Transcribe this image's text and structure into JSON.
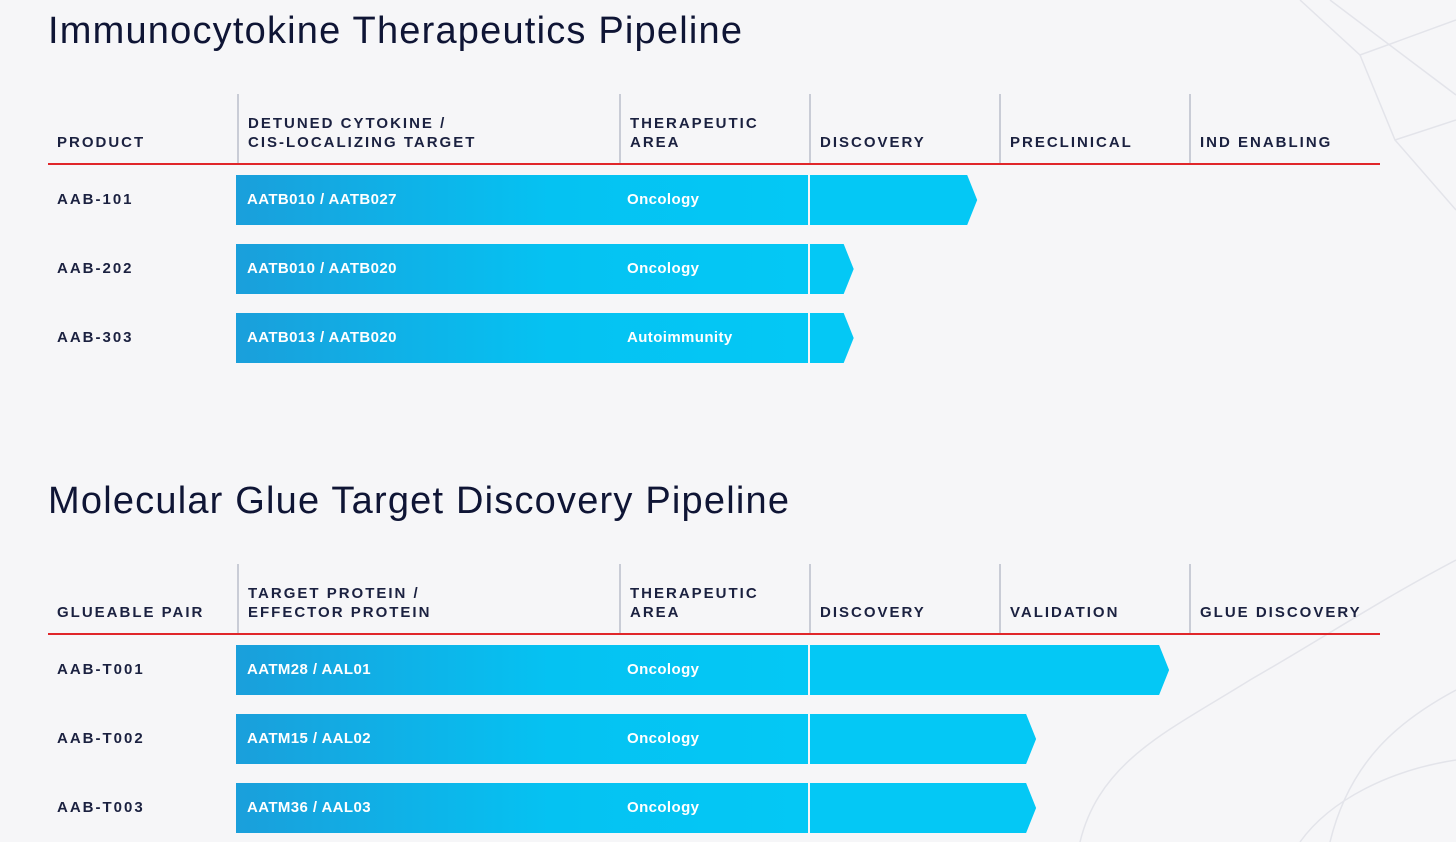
{
  "chart_data": [
    {
      "type": "bar",
      "title": "Immunocytokine Therapeutics Pipeline",
      "columns": [
        "PRODUCT",
        "DETUNED CYTOKINE /\nCIS-LOCALIZING TARGET",
        "THERAPEUTIC\nAREA",
        "DISCOVERY",
        "PRECLINICAL",
        "IND ENABLING"
      ],
      "stages": [
        "DISCOVERY",
        "PRECLINICAL",
        "IND ENABLING"
      ],
      "rows": [
        {
          "label": "AAB-101",
          "target": "AATB010 / AATB027",
          "area": "Oncology",
          "progress": 0.88
        },
        {
          "label": "AAB-202",
          "target": "AATB010 / AATB020",
          "area": "Oncology",
          "progress": 0.23
        },
        {
          "label": "AAB-303",
          "target": "AATB013 / AATB020",
          "area": "Autoimmunity",
          "progress": 0.23
        }
      ]
    },
    {
      "type": "bar",
      "title": "Molecular Glue Target Discovery Pipeline",
      "columns": [
        "GLUEABLE PAIR",
        "TARGET PROTEIN /\nEFFECTOR PROTEIN",
        "THERAPEUTIC\nAREA",
        "DISCOVERY",
        "VALIDATION",
        "GLUE DISCOVERY"
      ],
      "stages": [
        "DISCOVERY",
        "VALIDATION",
        "GLUE DISCOVERY"
      ],
      "rows": [
        {
          "label": "AAB-T001",
          "target": "AATM28 / AAL01",
          "area": "Oncology",
          "progress": 1.89
        },
        {
          "label": "AAB-T002",
          "target": "AATM15 / AAL02",
          "area": "Oncology",
          "progress": 1.19
        },
        {
          "label": "AAB-T003",
          "target": "AATM36 / AAL03",
          "area": "Oncology",
          "progress": 1.19
        }
      ]
    }
  ],
  "colors": {
    "bar_start": "#1a9fdb",
    "bar_end": "#04c8f5",
    "stage_fill": "#04c8f5",
    "rule": "#e0262a",
    "divider": "#c9ccd6"
  }
}
